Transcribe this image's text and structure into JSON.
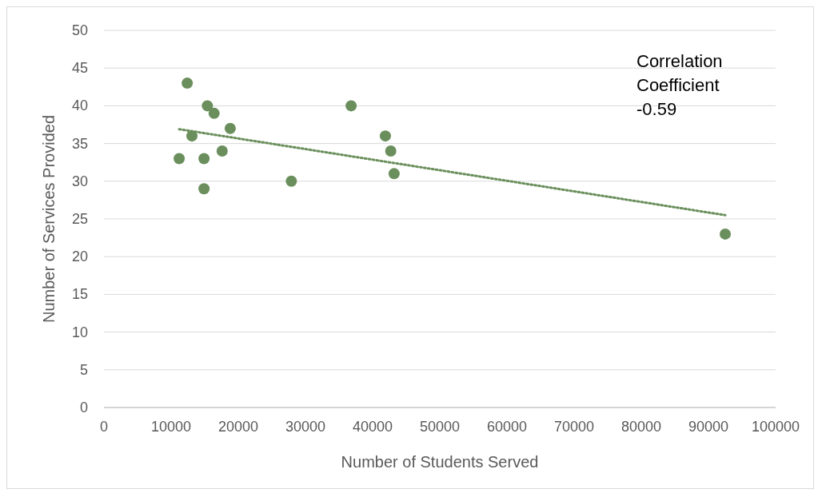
{
  "chart_data": {
    "type": "scatter",
    "xlabel": "Number of Students Served",
    "ylabel": "Number of Services Provided",
    "xlim": [
      0,
      100000
    ],
    "xticks": [
      0,
      10000,
      20000,
      30000,
      40000,
      50000,
      60000,
      70000,
      80000,
      90000,
      100000
    ],
    "ylim": [
      0,
      50
    ],
    "yticks": [
      0,
      5,
      10,
      15,
      20,
      25,
      30,
      35,
      40,
      45,
      50
    ],
    "grid": "y",
    "marker": "circle",
    "series": [
      {
        "color": "#6a8f5c",
        "x": [
          11200,
          12400,
          13100,
          14900,
          14900,
          15400,
          16400,
          17600,
          18800,
          27900,
          36800,
          41900,
          42700,
          43200,
          92500
        ],
        "values": [
          33,
          43,
          36,
          33,
          29,
          40,
          39,
          34,
          37,
          30,
          40,
          36,
          34,
          31,
          23
        ]
      },
      {
        "type": "line",
        "color": "#6a8f5c",
        "line_style": "dotted",
        "marker": "none",
        "x": [
          11200,
          92500
        ],
        "values": [
          36.9,
          25.5
        ]
      }
    ],
    "annotations": [
      "Correlation\nCoefficient\n-0.59"
    ]
  }
}
